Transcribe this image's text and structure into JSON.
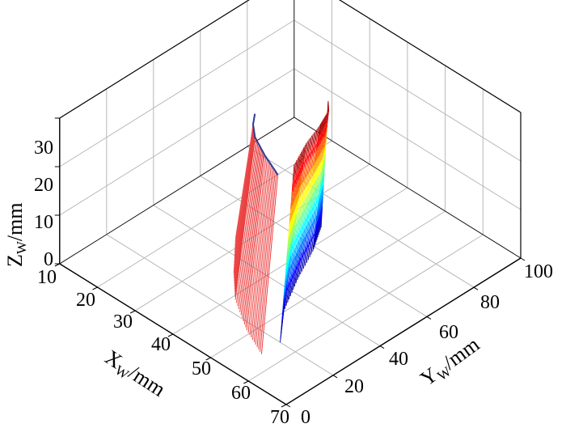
{
  "chart_data": {
    "type": "surface3d",
    "axes": {
      "x": {
        "label_main": "X",
        "label_sub": "W",
        "label_unit": "/mm",
        "ticks": [
          "10",
          "20",
          "30",
          "40",
          "50",
          "60",
          "70"
        ],
        "range": [
          10,
          70
        ]
      },
      "y": {
        "label_main": "Y",
        "label_sub": "W",
        "label_unit": "/mm",
        "ticks": [
          "0",
          "20",
          "40",
          "60",
          "80",
          "100"
        ],
        "range": [
          0,
          100
        ]
      },
      "z": {
        "label_main": "Z",
        "label_sub": "W",
        "label_unit": "/mm",
        "ticks": [
          "0",
          "10",
          "20",
          "30"
        ],
        "range": [
          0,
          30
        ]
      }
    },
    "grid": true,
    "series": [
      {
        "colormap": "red",
        "u_lines": 40,
        "edge_color": "#2b3a9a",
        "top_edge": [
          [
            51,
            27,
            30
          ],
          [
            45,
            31,
            30
          ],
          [
            40,
            35,
            30
          ],
          [
            37,
            39,
            30
          ],
          [
            35,
            43,
            30
          ]
        ],
        "bottom_edge": [
          [
            56,
            12,
            0
          ],
          [
            49,
            17,
            0
          ],
          [
            41,
            25,
            0
          ],
          [
            35,
            34,
            0
          ],
          [
            28,
            46,
            0
          ]
        ]
      },
      {
        "colormap": "jet",
        "u_lines": 40,
        "v_lines": 8,
        "top_edge": [
          [
            51,
            34,
            30
          ],
          [
            48,
            44,
            30
          ],
          [
            46,
            53,
            30
          ],
          [
            44,
            60,
            30
          ],
          [
            42,
            63,
            30
          ]
        ],
        "bottom_edge": [
          [
            56,
            20,
            0
          ],
          [
            50,
            31,
            0
          ],
          [
            45,
            45,
            0
          ],
          [
            41,
            58,
            0
          ],
          [
            37,
            68,
            0
          ]
        ]
      }
    ]
  }
}
